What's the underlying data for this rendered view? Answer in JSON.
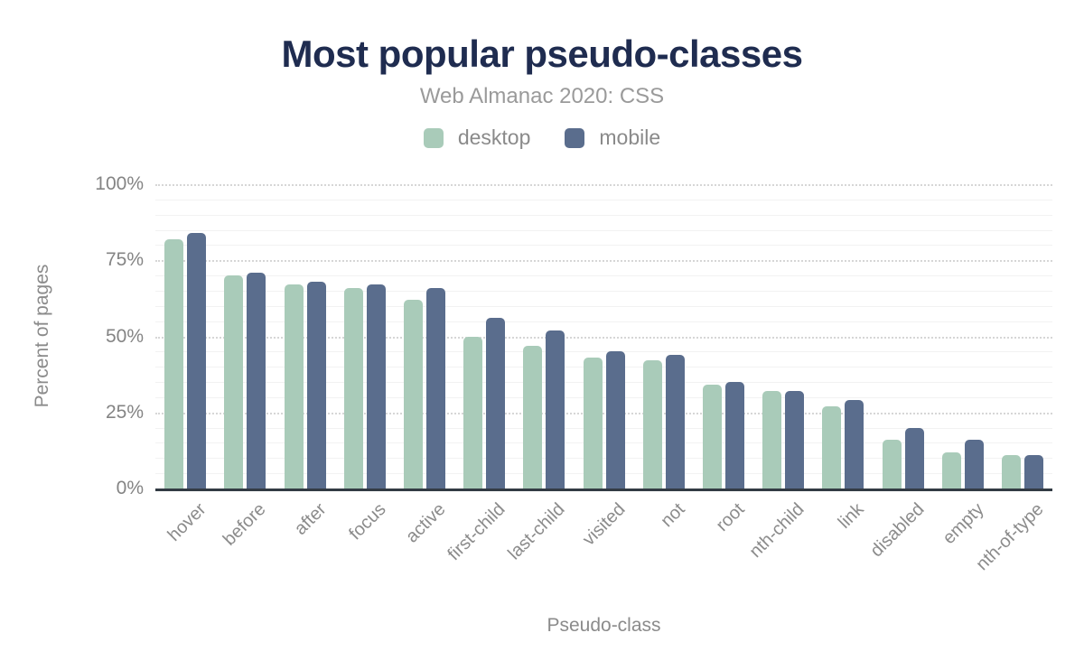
{
  "header": {
    "title": "Most popular pseudo-classes",
    "subtitle": "Web Almanac 2020: CSS"
  },
  "legend": {
    "items": [
      {
        "label": "desktop",
        "color": "#a9cbb9"
      },
      {
        "label": "mobile",
        "color": "#5a6d8d"
      }
    ]
  },
  "axes": {
    "y_title": "Percent of pages",
    "x_title": "Pseudo-class",
    "y_ticks": [
      {
        "label": "0%",
        "value": 0
      },
      {
        "label": "25%",
        "value": 25
      },
      {
        "label": "50%",
        "value": 50
      },
      {
        "label": "75%",
        "value": 75
      },
      {
        "label": "100%",
        "value": 100
      }
    ]
  },
  "chart_data": {
    "type": "bar",
    "title": "Most popular pseudo-classes",
    "subtitle": "Web Almanac 2020: CSS",
    "categories": [
      "hover",
      "before",
      "after",
      "focus",
      "active",
      "first-child",
      "last-child",
      "visited",
      "not",
      "root",
      "nth-child",
      "link",
      "disabled",
      "empty",
      "nth-of-type"
    ],
    "series": [
      {
        "name": "desktop",
        "color": "#a9cbb9",
        "values": [
          82,
          70,
          67,
          66,
          62,
          50,
          47,
          43,
          42,
          34,
          32,
          27,
          16,
          12,
          11
        ]
      },
      {
        "name": "mobile",
        "color": "#5a6d8d",
        "values": [
          84,
          71,
          68,
          67,
          66,
          56,
          52,
          45,
          44,
          35,
          32,
          29,
          20,
          16,
          11
        ]
      }
    ],
    "xlabel": "Pseudo-class",
    "ylabel": "Percent of pages",
    "ylim": [
      0,
      100
    ],
    "ytick_values": [
      0,
      25,
      50,
      75,
      100
    ],
    "grid": {
      "minor_every": 5,
      "major_every": 25,
      "minor_style": "solid",
      "major_style": "dotted"
    },
    "legend_position": "top",
    "bar_corner_radius": 5
  },
  "colors": {
    "title": "#1f2c50",
    "subtitle": "#9a9a9a",
    "axis_text": "#8b8b8b",
    "axis_line": "#333b44",
    "grid_minor": "#f2f2f2",
    "grid_major": "#d6d6d6",
    "background": "#ffffff"
  }
}
